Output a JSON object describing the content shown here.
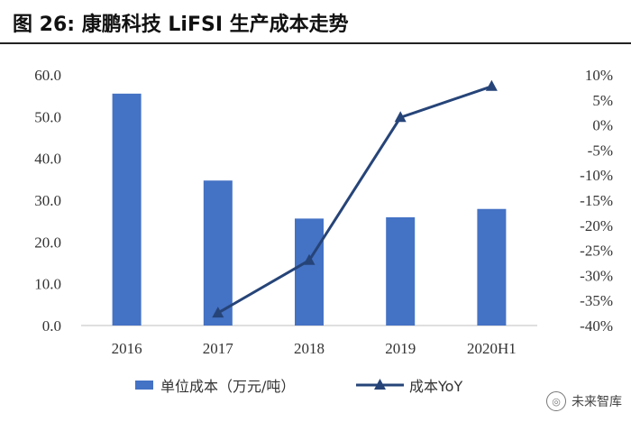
{
  "header": {
    "title": "图 26: 康鹏科技 LiFSI 生产成本走势"
  },
  "chart_data": {
    "type": "bar+line",
    "categories": [
      "2016",
      "2017",
      "2018",
      "2019",
      "2020H1"
    ],
    "bar_series": {
      "name": "单位成本（万元/吨）",
      "values": [
        55.5,
        34.7,
        25.6,
        25.9,
        27.9
      ],
      "color": "#4472C4"
    },
    "line_series": {
      "name": "成本YoY",
      "values": [
        null,
        -0.375,
        -0.27,
        0.015,
        0.077
      ],
      "color": "#264478"
    },
    "y_left": {
      "min": 0,
      "max": 60,
      "step": 10,
      "tick_labels": [
        "0.0",
        "10.0",
        "20.0",
        "30.0",
        "40.0",
        "50.0",
        "60.0"
      ]
    },
    "y_right": {
      "min": -0.4,
      "max": 0.1,
      "step": 0.05,
      "tick_labels": [
        "-40%",
        "-35%",
        "-30%",
        "-25%",
        "-20%",
        "-15%",
        "-10%",
        "-5%",
        "0%",
        "5%",
        "10%"
      ]
    },
    "legend_position": "bottom",
    "grid": false
  },
  "watermark": {
    "text": "未来智库"
  }
}
